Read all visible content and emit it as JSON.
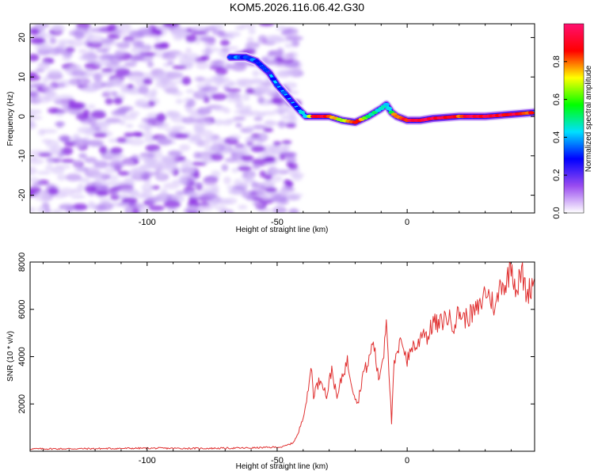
{
  "title": "KOM5.2026.116.06.42.G30",
  "chart_data": [
    {
      "type": "heatmap",
      "xlabel": "Height of straight line (km)",
      "ylabel": "Frequency (Hz)",
      "xlim": [
        -145,
        49
      ],
      "ylim": [
        -24.5,
        23.5
      ],
      "xticks": [
        -100,
        -50,
        0
      ],
      "yticks": [
        -20,
        -10,
        0,
        10,
        20
      ],
      "colorbar": {
        "label": "Normalized spectral amplitude",
        "range": [
          0,
          1
        ],
        "ticks": [
          0.0,
          0.2,
          0.4,
          0.6,
          0.8
        ],
        "tick_labels": [
          "0.0",
          "0.2",
          "0.4",
          "0.6",
          "0.8"
        ],
        "colors": [
          "#ffffff",
          "#9a4cf0",
          "#0000ff",
          "#00e0ff",
          "#00ff00",
          "#ffff00",
          "#ff0000",
          "#ff1070"
        ]
      },
      "noise_region": {
        "x": [
          -145,
          -42
        ],
        "y": [
          -24.5,
          23.5
        ],
        "amplitude": [
          0.02,
          0.25
        ]
      },
      "ridge": {
        "x": [
          -68,
          -62,
          -58,
          -53,
          -50,
          -46,
          -42,
          -39,
          -36,
          -30,
          -25,
          -20,
          -15,
          -10,
          -8,
          -6,
          -4,
          -2,
          0,
          5,
          10,
          20,
          30,
          40,
          49
        ],
        "y": [
          15,
          15,
          14,
          11,
          8,
          5,
          2,
          0,
          0,
          0,
          -1,
          -1.5,
          0,
          2,
          3,
          1,
          0,
          -0.5,
          -1,
          -1,
          -0.5,
          0,
          0,
          0.5,
          1
        ],
        "amplitude": [
          0.3,
          0.35,
          0.3,
          0.25,
          0.25,
          0.3,
          0.35,
          0.5,
          0.9,
          0.85,
          0.6,
          0.9,
          0.5,
          0.5,
          0.4,
          0.6,
          0.8,
          0.8,
          0.9,
          0.95,
          0.9,
          0.85,
          0.95,
          0.9,
          0.85
        ]
      }
    },
    {
      "type": "line",
      "xlabel": "Height of straight line (km)",
      "ylabel": "SNR (10 * v/v)",
      "xlim": [
        -145,
        49
      ],
      "ylim": [
        0,
        8000
      ],
      "xticks": [
        -100,
        -50,
        0
      ],
      "yticks": [
        2000,
        4000,
        6000,
        8000
      ],
      "color": "#e03030",
      "grid": false,
      "series": [
        {
          "x": [
            -145,
            -120,
            -100,
            -80,
            -60,
            -48,
            -44,
            -42,
            -40,
            -38,
            -37,
            -36,
            -35,
            -33,
            -31,
            -29,
            -27,
            -25,
            -23,
            -21,
            -19,
            -17,
            -15,
            -13,
            -11,
            -9,
            -8,
            -7,
            -6,
            -5,
            -4,
            -2,
            0,
            2,
            4,
            6,
            8,
            10,
            12,
            15,
            18,
            20,
            22,
            25,
            28,
            30,
            32,
            34,
            36,
            38,
            40,
            42,
            44,
            46,
            49
          ],
          "y": [
            100,
            110,
            130,
            120,
            140,
            180,
            350,
            700,
            1500,
            2500,
            3700,
            2400,
            2700,
            3100,
            2300,
            3500,
            2200,
            3200,
            3800,
            2700,
            2000,
            3300,
            3700,
            4700,
            3000,
            4200,
            5800,
            3500,
            1200,
            3700,
            4000,
            4800,
            3800,
            4500,
            4400,
            5200,
            4800,
            5500,
            5300,
            5700,
            5400,
            5900,
            5600,
            5800,
            6100,
            6800,
            6500,
            6000,
            7200,
            7000,
            8000,
            6800,
            7600,
            6600,
            7300
          ]
        }
      ]
    }
  ]
}
